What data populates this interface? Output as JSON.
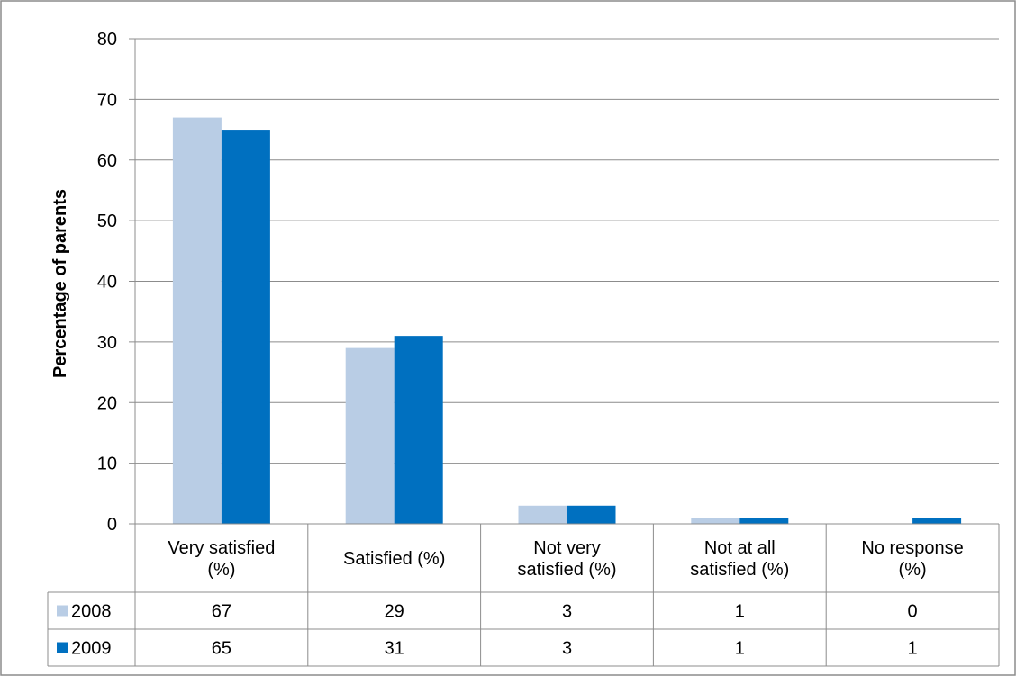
{
  "chart_data": {
    "type": "bar",
    "ylabel": "Percentage of parents",
    "ylim": [
      0,
      80
    ],
    "yticks": [
      0,
      10,
      20,
      30,
      40,
      50,
      60,
      70,
      80
    ],
    "grid": true,
    "categories": [
      [
        "Very satisfied",
        "(%)"
      ],
      [
        "Satisfied (%)"
      ],
      [
        "Not very",
        "satisfied (%)"
      ],
      [
        "Not at all",
        "satisfied (%)"
      ],
      [
        "No response",
        "(%)"
      ]
    ],
    "series": [
      {
        "name": "2008",
        "color": "#B9CDE5",
        "values": [
          67,
          29,
          3,
          1,
          0
        ]
      },
      {
        "name": "2009",
        "color": "#0070C0",
        "values": [
          65,
          31,
          3,
          1,
          1
        ]
      }
    ],
    "legend": "data-table",
    "data_table": true
  }
}
